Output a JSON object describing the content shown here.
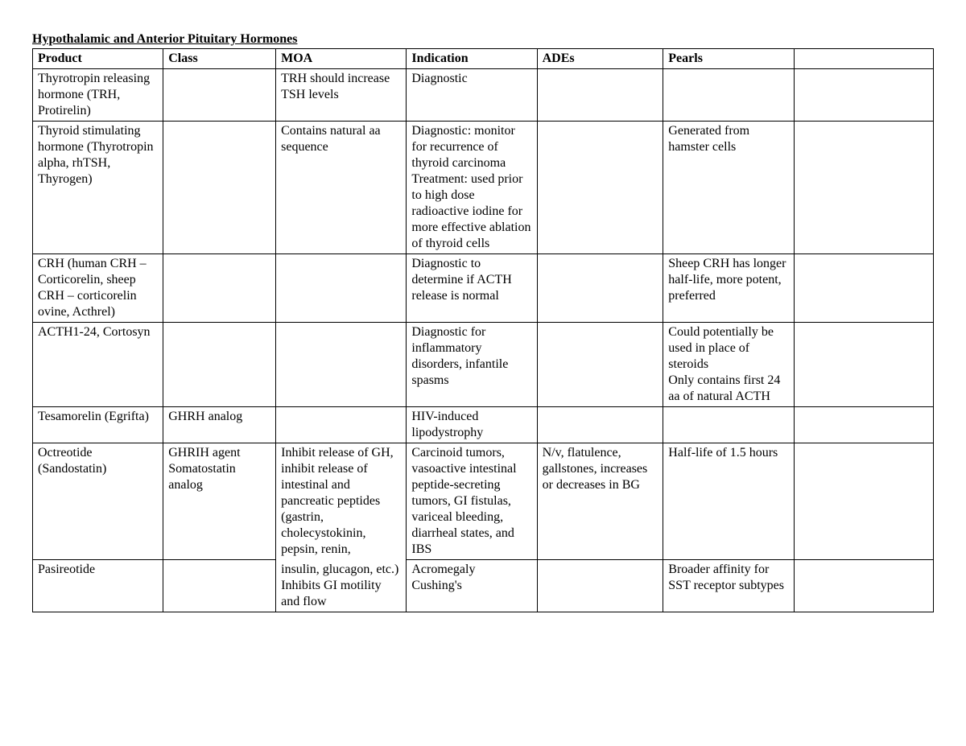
{
  "title": "Hypothalamic and Anterior Pituitary Hormones",
  "columns": [
    "Product",
    "Class",
    "MOA",
    "Indication",
    "ADEs",
    "Pearls",
    ""
  ],
  "rows": {
    "r0": {
      "product": "Thyrotropin releasing hormone (TRH, Protirelin)",
      "class": "",
      "moa": "TRH should increase TSH levels",
      "indication": "Diagnostic",
      "ades": "",
      "pearls": "",
      "extra": ""
    },
    "r1": {
      "product": "Thyroid stimulating hormone (Thyrotropin alpha, rhTSH, Thyrogen)",
      "class": "",
      "moa": "Contains natural aa sequence",
      "indication": "Diagnostic: monitor for recurrence of thyroid carcinoma\nTreatment: used prior to high dose radioactive iodine for more effective ablation of thyroid cells",
      "ades": "",
      "pearls": "Generated from hamster cells",
      "extra": ""
    },
    "r2": {
      "product": "CRH (human CRH – Corticorelin, sheep CRH – corticorelin ovine, Acthrel)",
      "class": "",
      "moa": "",
      "indication": "Diagnostic to determine if ACTH release is normal",
      "ades": "",
      "pearls": "Sheep CRH has longer half-life, more potent, preferred",
      "extra": ""
    },
    "r3": {
      "product": "ACTH1-24, Cortosyn",
      "class": "",
      "moa": "",
      "indication": "Diagnostic for inflammatory disorders, infantile spasms",
      "ades": "",
      "pearls": "Could potentially be used in place of steroids\nOnly contains first 24 aa of natural ACTH",
      "extra": ""
    },
    "r4": {
      "product": "Tesamorelin (Egrifta)",
      "class": "GHRH analog",
      "moa": "",
      "indication": "HIV-induced lipodystrophy",
      "ades": "",
      "pearls": "",
      "extra": ""
    },
    "r5": {
      "product": "Octreotide (Sandostatin)",
      "class": "GHRIH agent Somatostatin analog",
      "moa_top": "Inhibit release of GH, inhibit release of intestinal and pancreatic peptides (gastrin, cholecystokinin, pepsin, renin,",
      "indication": "Carcinoid tumors, vasoactive intestinal peptide-secreting tumors, GI fistulas, variceal bleeding, diarrheal states, and IBS",
      "ades": "N/v, flatulence, gallstones, increases or decreases in BG",
      "pearls": "Half-life of 1.5 hours",
      "extra": ""
    },
    "r6": {
      "product": "Pasireotide",
      "class": "",
      "moa_bottom": "insulin, glucagon, etc.)\nInhibits GI motility and flow",
      "indication": "Acromegaly\nCushing's",
      "ades": "",
      "pearls": "Broader affinity for SST receptor subtypes",
      "extra": ""
    }
  }
}
